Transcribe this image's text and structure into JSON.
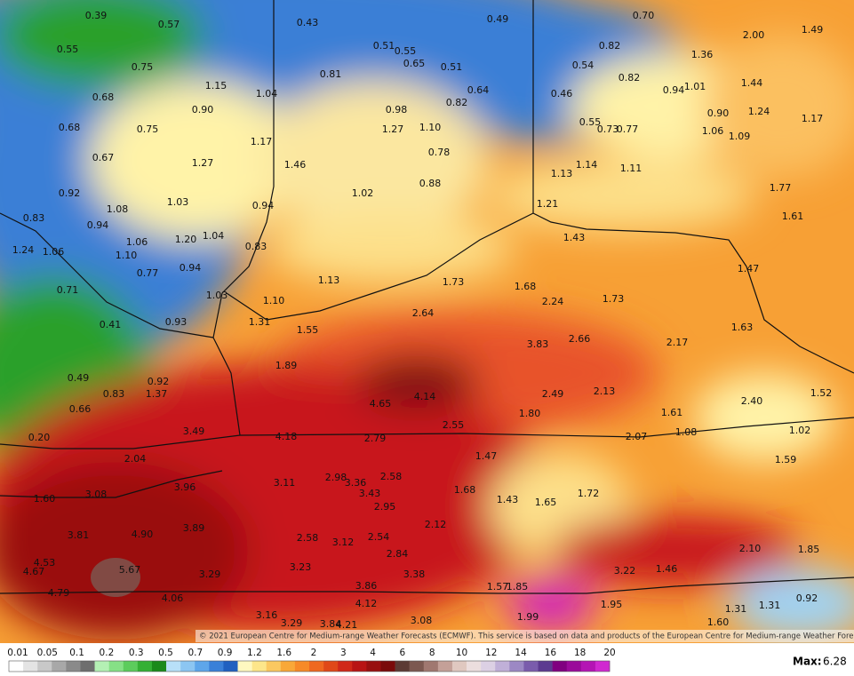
{
  "map": {
    "labels": [
      "0.39",
      "0.57",
      "0.43",
      "0.49",
      "0.70",
      "2.00",
      "1.49",
      "0.55",
      "0.51",
      "0.55",
      "0.65",
      "0.51",
      "0.82",
      "1.36",
      "0.75",
      "0.81",
      "0.54",
      "0.82",
      "1.44",
      "1.15",
      "1.04",
      "0.64",
      "0.46",
      "0.94",
      "1.01",
      "0.68",
      "0.82",
      "0.90",
      "0.98",
      "0.90",
      "1.24",
      "1.17",
      "0.68",
      "0.75",
      "1.27",
      "1.10",
      "0.55",
      "0.73",
      "0.77",
      "1.06",
      "1.09",
      "1.17",
      "0.67",
      "0.78",
      "1.27",
      "1.46",
      "1.14",
      "1.11",
      "1.13",
      "0.88",
      "1.02",
      "0.92",
      "1.03",
      "1.77",
      "1.21",
      "0.94",
      "1.08",
      "0.83",
      "1.61",
      "0.94",
      "1.04",
      "1.20",
      "1.06",
      "1.43",
      "0.83",
      "1.24",
      "1.06",
      "1.10",
      "0.94",
      "1.47",
      "0.77",
      "1.13",
      "1.73",
      "1.68",
      "0.71",
      "1.03",
      "1.10",
      "2.24",
      "1.73",
      "2.64",
      "0.41",
      "0.93",
      "1.31",
      "1.55",
      "1.63",
      "3.83",
      "2.66",
      "2.17",
      "1.89",
      "0.49",
      "0.92",
      "0.83",
      "1.37",
      "4.14",
      "2.49",
      "2.13",
      "1.52",
      "4.65",
      "2.40",
      "0.66",
      "1.80",
      "1.61",
      "2.55",
      "3.49",
      "1.08",
      "2.07",
      "1.02",
      "0.20",
      "4.18",
      "2.79",
      "2.04",
      "1.47",
      "1.59",
      "2.98",
      "3.36",
      "2.58",
      "3.11",
      "3.96",
      "1.68",
      "1.72",
      "3.43",
      "3.08",
      "1.60",
      "1.43",
      "1.65",
      "2.95",
      "2.12",
      "3.81",
      "4.90",
      "3.89",
      "2.58",
      "3.12",
      "2.54",
      "2.10",
      "1.85",
      "2.84",
      "4.53",
      "5.67",
      "3.23",
      "1.46",
      "3.22",
      "4.67",
      "3.29",
      "3.38",
      "3.86",
      "1.57",
      "1.85",
      "4.79",
      "4.06",
      "4.12",
      "0.92",
      "1.95",
      "1.31",
      "1.31",
      "3.16",
      "1.99",
      "3.08",
      "3.29",
      "3.84",
      "4.21",
      "1.60"
    ],
    "credit": "© 2021 European Centre for Medium-range Weather Forecasts (ECMWF). This service is based on data and products of the European Centre for Medium-range Weather Forecasts (ECMWF)."
  },
  "legend": {
    "ticks": [
      "0.01",
      "0.05",
      "0.1",
      "0.2",
      "0.3",
      "0.5",
      "0.7",
      "0.9",
      "1.2",
      "1.6",
      "2",
      "3",
      "4",
      "6",
      "8",
      "10",
      "12",
      "14",
      "16",
      "18",
      "20"
    ],
    "max_label": "Max:",
    "max_value": "6.28"
  }
}
